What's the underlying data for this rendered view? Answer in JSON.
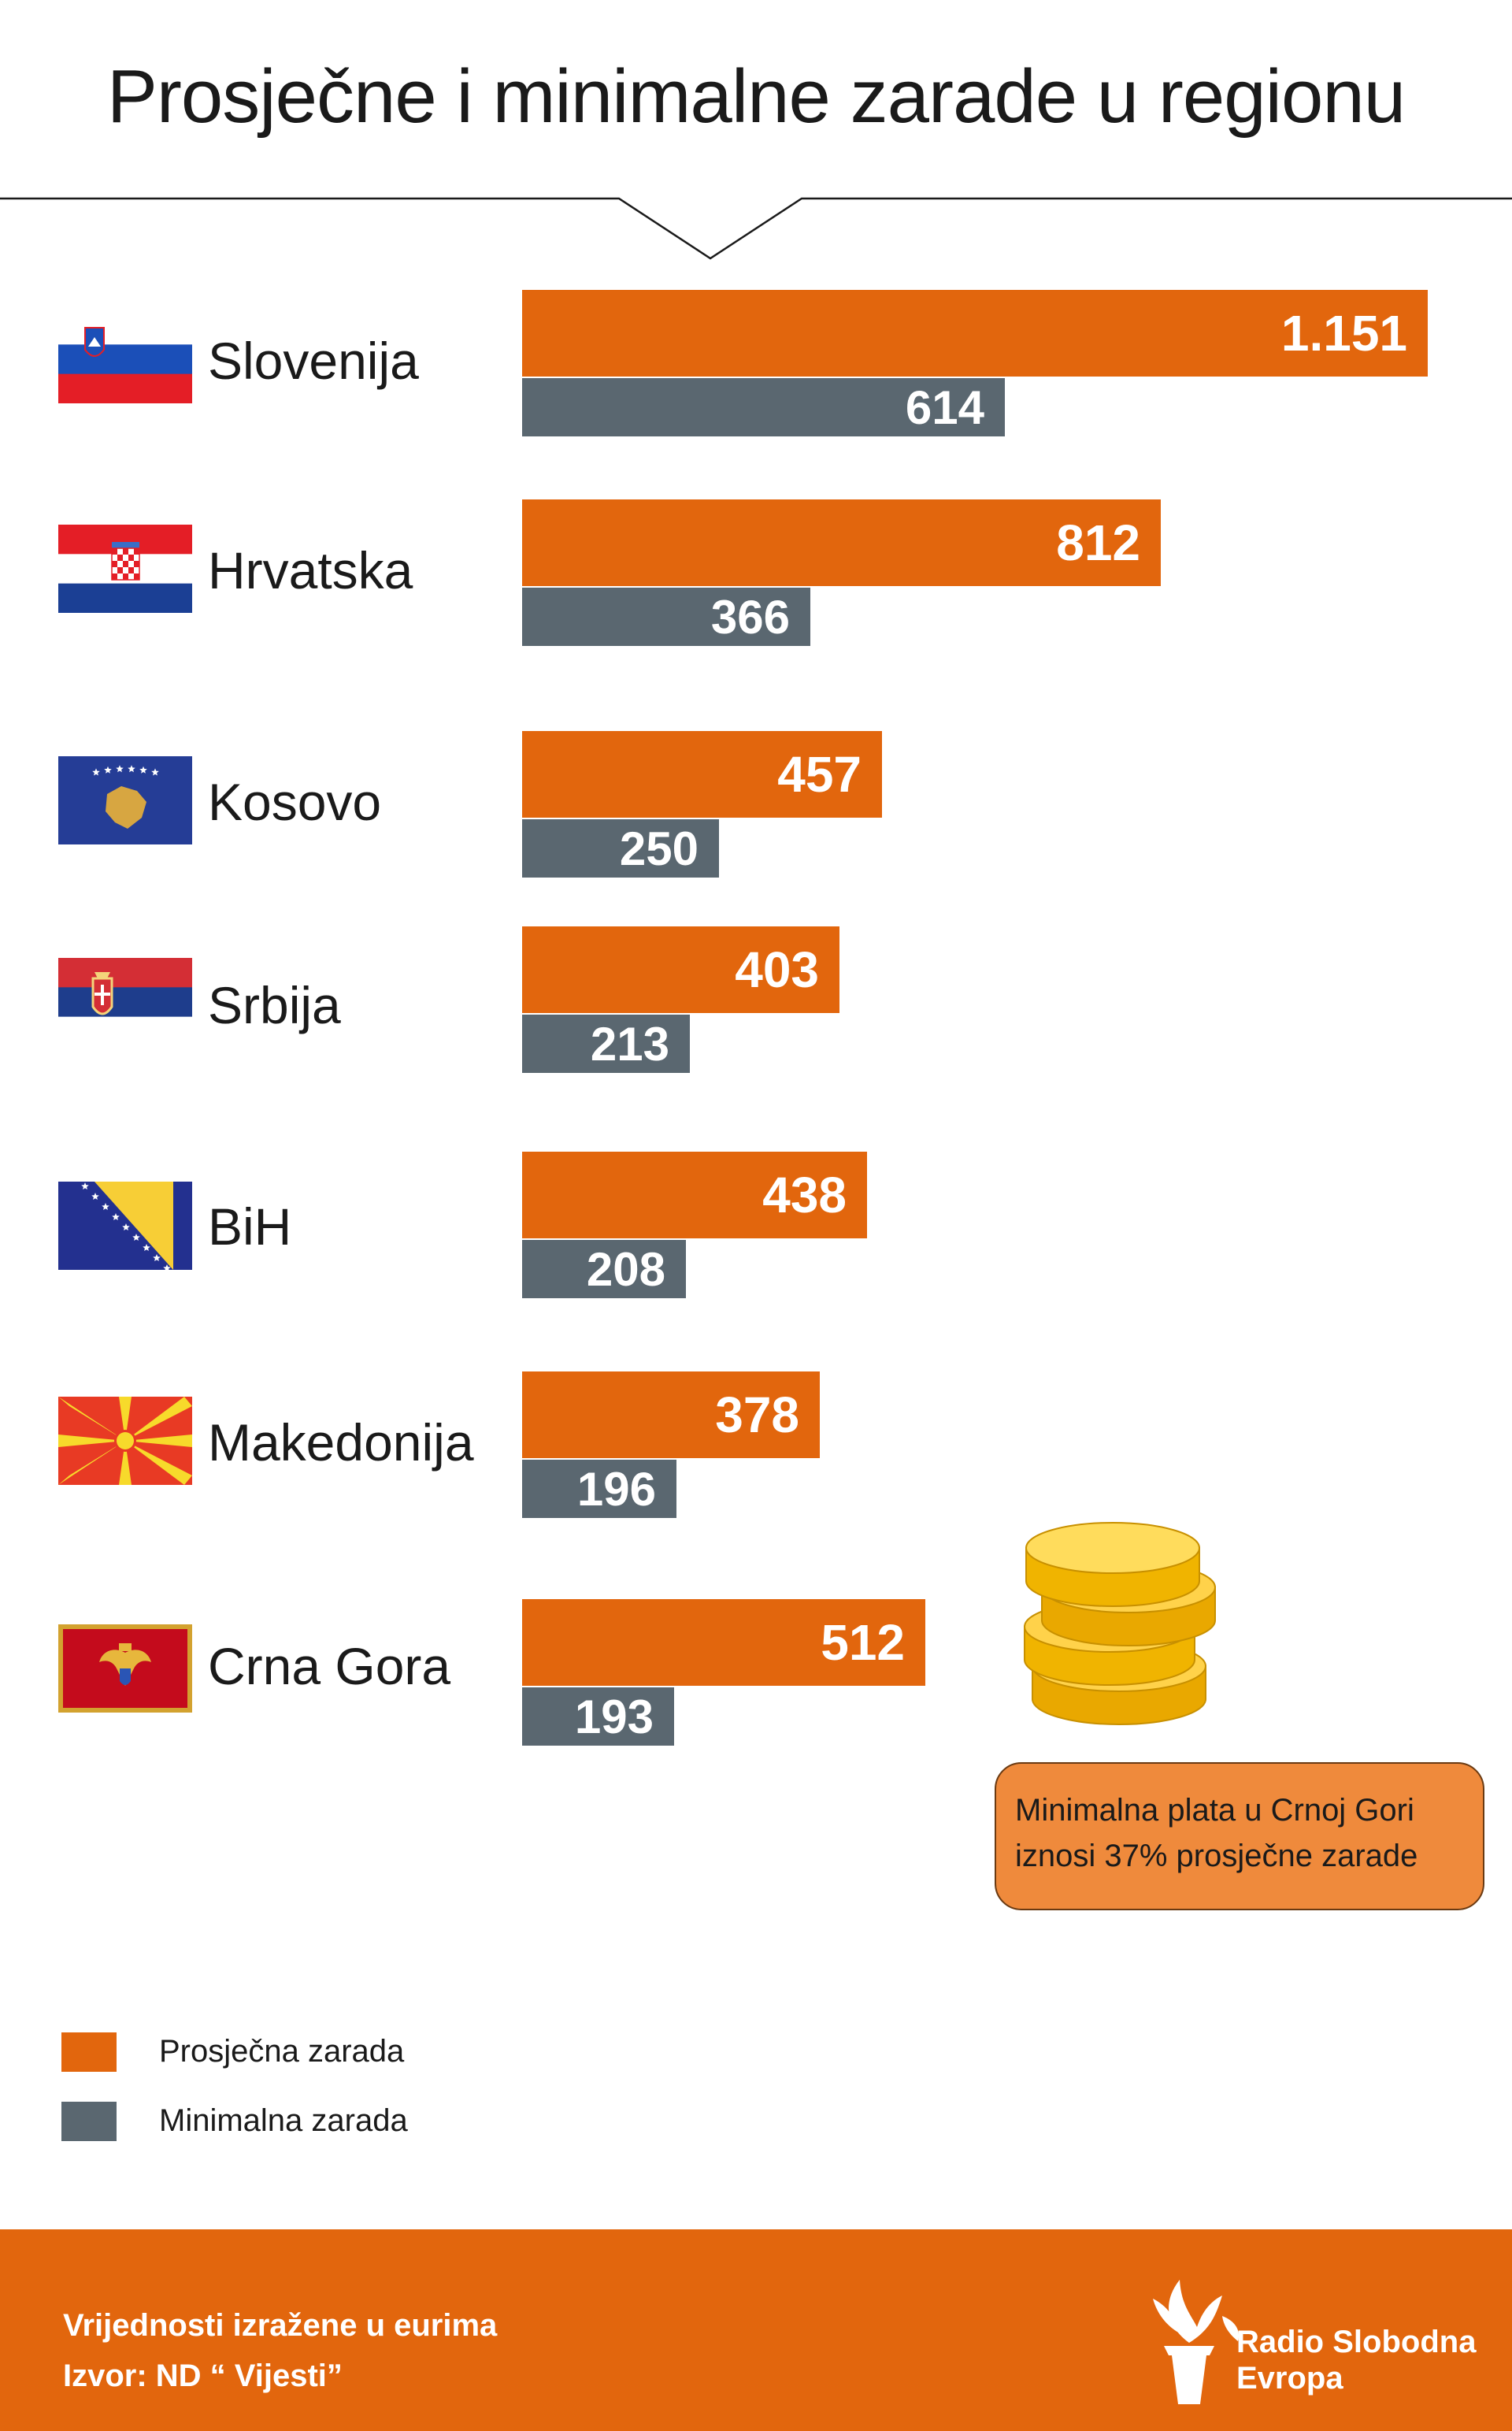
{
  "header": {
    "title": "Prosječne i minimalne zarade u regionu"
  },
  "colors": {
    "average": "#e2660d",
    "minimum": "#5a6770",
    "callout": "#ef8a3c",
    "footer": "#e2660d"
  },
  "chart_data": {
    "type": "bar",
    "orientation": "horizontal",
    "categories": [
      "Slovenija",
      "Hrvatska",
      "Kosovo",
      "Srbija",
      "BiH",
      "Makedonija",
      "Crna Gora"
    ],
    "series": [
      {
        "name": "Prosječna zarada",
        "values": [
          1151,
          812,
          457,
          403,
          438,
          378,
          512
        ],
        "labels": [
          "1.151",
          "812",
          "457",
          "403",
          "438",
          "378",
          "512"
        ]
      },
      {
        "name": "Minimalna zarada",
        "values": [
          614,
          366,
          250,
          213,
          208,
          196,
          193
        ],
        "labels": [
          "614",
          "366",
          "250",
          "213",
          "208",
          "196",
          "193"
        ]
      }
    ],
    "xlim": [
      0,
      1151
    ],
    "grid": false,
    "legend": "bottom-left",
    "data_labels": "inside-end"
  },
  "flags": [
    {
      "country": "Slovenija",
      "icon": "slovenia-flag-icon"
    },
    {
      "country": "Hrvatska",
      "icon": "croatia-flag-icon"
    },
    {
      "country": "Kosovo",
      "icon": "kosovo-flag-icon"
    },
    {
      "country": "Srbija",
      "icon": "serbia-flag-icon"
    },
    {
      "country": "BiH",
      "icon": "bosnia-flag-icon"
    },
    {
      "country": "Makedonija",
      "icon": "macedonia-flag-icon"
    },
    {
      "country": "Crna Gora",
      "icon": "montenegro-flag-icon"
    }
  ],
  "callout": {
    "line1": "Minimalna plata u Crnoj Gori",
    "line2": "iznosi 37% prosječne zarade"
  },
  "legend": {
    "average_label": "Prosječna zarada",
    "minimum_label": "Minimalna zarada"
  },
  "footer": {
    "note1": "Vrijednosti izražene u eurima",
    "note2": "Izvor: ND “ Vijesti”",
    "brand_line1": "Radio Slobodna",
    "brand_line2": "Evropa"
  },
  "icons": {
    "coins": "coin-stack-icon",
    "brand": "torch-logo-icon"
  }
}
